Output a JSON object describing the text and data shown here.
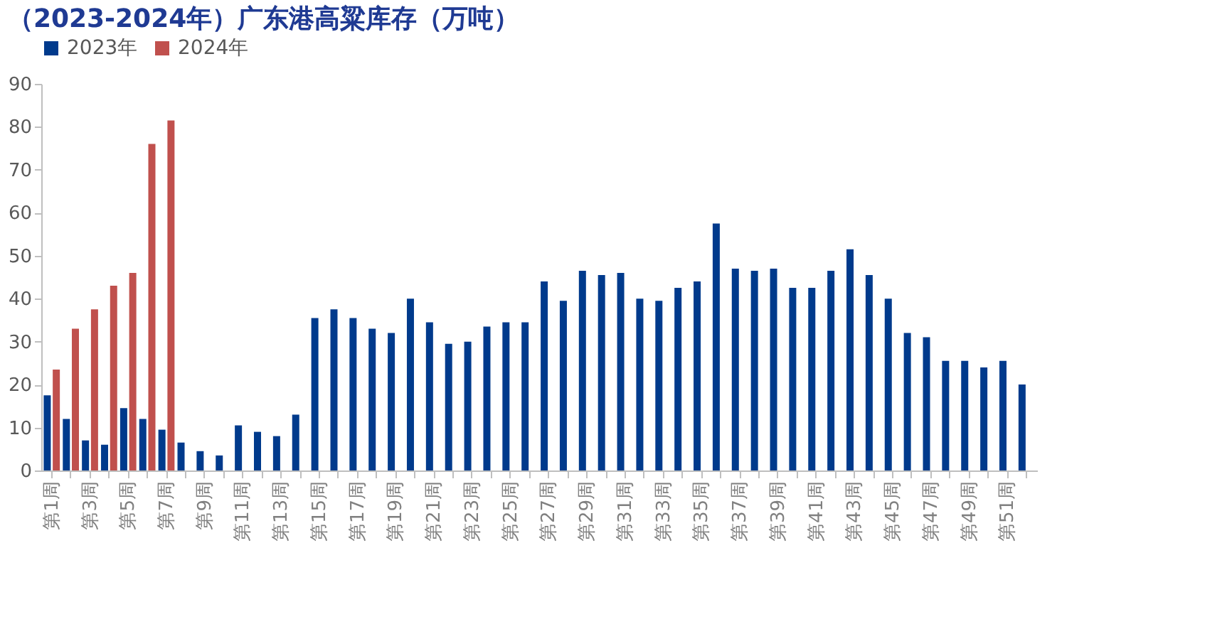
{
  "chart_data": {
    "type": "bar",
    "title": "（2023-2024年）广东港高粱库存（万吨）",
    "categories": [
      "第1周",
      null,
      "第3周",
      null,
      "第5周",
      null,
      "第7周",
      null,
      "第9周",
      null,
      "第11周",
      null,
      "第13周",
      null,
      "第15周",
      null,
      "第17周",
      null,
      "第19周",
      null,
      "第21周",
      null,
      "第23周",
      null,
      "第25周",
      null,
      "第27周",
      null,
      "第29周",
      null,
      "第31周",
      null,
      "第33周",
      null,
      "第35周",
      null,
      "第37周",
      null,
      "第39周",
      null,
      "第41周",
      null,
      "第43周",
      null,
      "第45周",
      null,
      "第47周",
      null,
      "第49周",
      null,
      "第51周",
      null
    ],
    "series": [
      {
        "name": "2023年",
        "color": "#003a8c",
        "values": [
          17.5,
          12,
          7,
          6,
          14.5,
          12,
          9.5,
          6.5,
          4.5,
          3.5,
          10.5,
          9,
          8,
          13,
          35.5,
          37.5,
          35.5,
          33,
          32,
          40,
          34.5,
          29.5,
          30,
          33.5,
          34.5,
          34.5,
          44,
          39.5,
          46.5,
          45.5,
          46,
          40,
          39.5,
          42.5,
          44,
          57.5,
          47,
          46.5,
          47,
          42.5,
          42.5,
          46.5,
          51.5,
          45.5,
          40,
          32,
          31,
          25.5,
          25.5,
          24,
          25.5,
          20
        ]
      },
      {
        "name": "2024年",
        "color": "#c0504d",
        "values": [
          23.5,
          33,
          37.5,
          43,
          46,
          76,
          81.5,
          null,
          null,
          null,
          null,
          null,
          null,
          null,
          null,
          null,
          null,
          null,
          null,
          null,
          null,
          null,
          null,
          null,
          null,
          null,
          null,
          null,
          null,
          null,
          null,
          null,
          null,
          null,
          null,
          null,
          null,
          null,
          null,
          null,
          null,
          null,
          null,
          null,
          null,
          null,
          null,
          null,
          null,
          null,
          null,
          null
        ]
      }
    ],
    "ylim": [
      0,
      90
    ],
    "yticks": [
      0,
      10,
      20,
      30,
      40,
      50,
      60,
      70,
      80,
      90
    ],
    "grid": false,
    "legend": "top"
  }
}
